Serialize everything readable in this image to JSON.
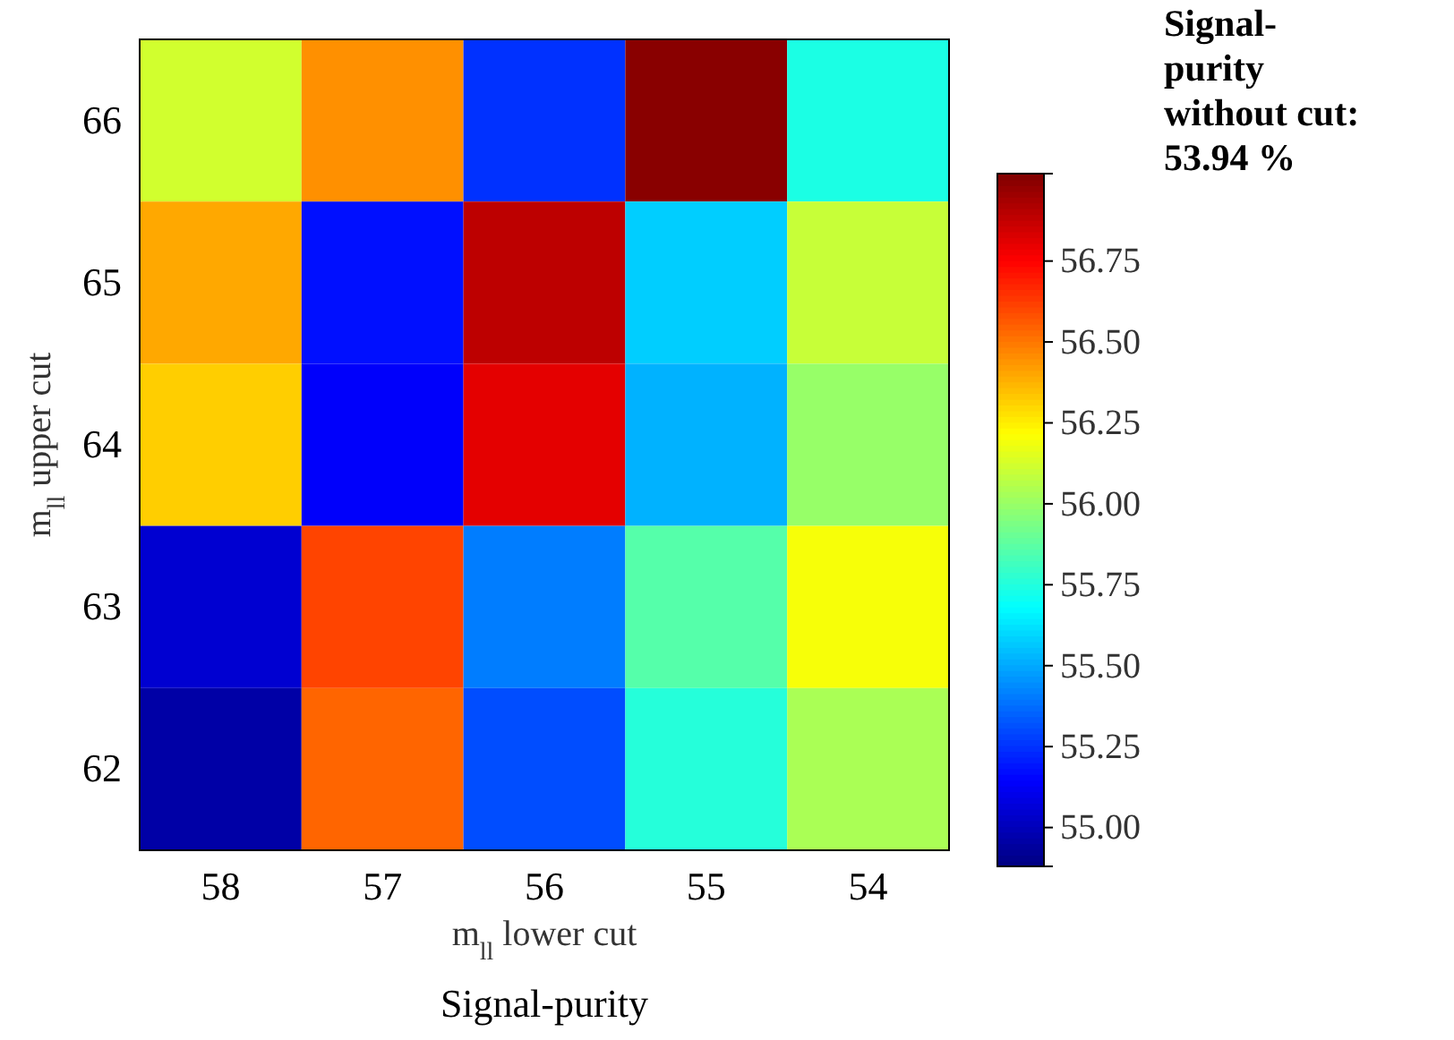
{
  "chart_data": {
    "type": "heatmap",
    "title": "Signal-purity",
    "xlabel": "m$_{ll}$  lower cut",
    "ylabel": "m$_{ll}$  upper cut",
    "categories": [
      "58",
      "57",
      "56",
      "55",
      "54"
    ],
    "y_categories": [
      "66",
      "65",
      "64",
      "63",
      "62"
    ],
    "cells": [
      [
        56.12,
        56.45,
        55.25,
        57.0,
        55.74
      ],
      [
        56.4,
        55.18,
        56.89,
        55.58,
        56.1
      ],
      [
        56.32,
        55.14,
        56.81,
        55.52,
        56.0
      ],
      [
        55.05,
        56.61,
        55.41,
        55.86,
        56.2
      ],
      [
        54.96,
        56.54,
        55.31,
        55.76,
        56.04
      ]
    ],
    "clim": [
      54.88,
      57.02
    ],
    "cticks": [
      {
        "value": 55,
        "label": "55.00"
      },
      55.25,
      {
        "value": 55.5,
        "label": "55.50"
      },
      55.75,
      {
        "value": 56,
        "label": "56.00"
      },
      56.25,
      {
        "value": 56.5,
        "label": "56.50"
      },
      56.75
    ],
    "annotations": [
      "Signal-\npurity\nwithout cut:\n53.94 %"
    ]
  }
}
